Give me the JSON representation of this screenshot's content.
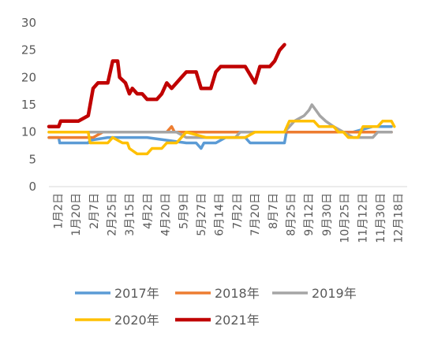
{
  "chart_data": {
    "type": "line",
    "title": "",
    "xlabel": "",
    "ylabel": "",
    "ylim": [
      0,
      30
    ],
    "yticks": [
      0,
      5,
      10,
      15,
      20,
      25,
      30
    ],
    "grid": false,
    "legend_position": "bottom",
    "x_tick_labels": [
      "1月2日",
      "1月20日",
      "2月7日",
      "2月25日",
      "3月15日",
      "4月2日",
      "4月20日",
      "5月9日",
      "5月27日",
      "6月14日",
      "7月2日",
      "7月20日",
      "8月7日",
      "8月25日",
      "9月12日",
      "9月30日",
      "10月25日",
      "11月12日",
      "11月30日",
      "12月18日"
    ],
    "series": [
      {
        "name": "2017年",
        "color": "#5B9BD5",
        "points": [
          [
            0,
            9
          ],
          [
            10,
            9
          ],
          [
            11,
            8
          ],
          [
            40,
            8
          ],
          [
            42,
            8.5
          ],
          [
            60,
            9
          ],
          [
            100,
            9
          ],
          [
            140,
            8
          ],
          [
            150,
            8
          ],
          [
            155,
            7
          ],
          [
            158,
            8
          ],
          [
            170,
            8
          ],
          [
            180,
            9
          ],
          [
            200,
            9
          ],
          [
            205,
            8
          ],
          [
            240,
            8
          ],
          [
            242,
            10
          ],
          [
            270,
            10
          ],
          [
            280,
            10
          ],
          [
            300,
            10
          ],
          [
            310,
            10
          ],
          [
            330,
            11
          ],
          [
            349,
            11
          ]
        ]
      },
      {
        "name": "2018年",
        "color": "#ED7D31",
        "points": [
          [
            0,
            9
          ],
          [
            30,
            9
          ],
          [
            35,
            9
          ],
          [
            45,
            9
          ],
          [
            55,
            10
          ],
          [
            120,
            10
          ],
          [
            125,
            11
          ],
          [
            128,
            10
          ],
          [
            200,
            10
          ],
          [
            280,
            10
          ],
          [
            300,
            10
          ],
          [
            320,
            10
          ],
          [
            349,
            10
          ]
        ]
      },
      {
        "name": "2019年",
        "color": "#A5A5A5",
        "points": [
          [
            0,
            10
          ],
          [
            130,
            10
          ],
          [
            140,
            9
          ],
          [
            190,
            9
          ],
          [
            195,
            10
          ],
          [
            240,
            10
          ],
          [
            250,
            12
          ],
          [
            260,
            13
          ],
          [
            265,
            14
          ],
          [
            268,
            15
          ],
          [
            272,
            14
          ],
          [
            276,
            13
          ],
          [
            282,
            12
          ],
          [
            290,
            11
          ],
          [
            300,
            10
          ],
          [
            310,
            9
          ],
          [
            330,
            9
          ],
          [
            335,
            10
          ],
          [
            349,
            10
          ]
        ]
      },
      {
        "name": "2020年",
        "color": "#FFC000",
        "points": [
          [
            0,
            10
          ],
          [
            40,
            10
          ],
          [
            42,
            8
          ],
          [
            60,
            8
          ],
          [
            65,
            9
          ],
          [
            75,
            8
          ],
          [
            80,
            8
          ],
          [
            82,
            7
          ],
          [
            90,
            6
          ],
          [
            100,
            6
          ],
          [
            105,
            7
          ],
          [
            115,
            7
          ],
          [
            120,
            8
          ],
          [
            130,
            8
          ],
          [
            135,
            9
          ],
          [
            140,
            10
          ],
          [
            160,
            9
          ],
          [
            200,
            9
          ],
          [
            210,
            10
          ],
          [
            240,
            10
          ],
          [
            245,
            12
          ],
          [
            255,
            12
          ],
          [
            270,
            12
          ],
          [
            275,
            11
          ],
          [
            290,
            11
          ],
          [
            295,
            10
          ],
          [
            300,
            10
          ],
          [
            305,
            9
          ],
          [
            315,
            9
          ],
          [
            320,
            11
          ],
          [
            335,
            11
          ],
          [
            340,
            12
          ],
          [
            349,
            12
          ],
          [
            352,
            11
          ]
        ]
      },
      {
        "name": "2021年",
        "color": "#C00000",
        "points": [
          [
            0,
            11
          ],
          [
            10,
            11
          ],
          [
            12,
            12
          ],
          [
            30,
            12
          ],
          [
            40,
            13
          ],
          [
            45,
            18
          ],
          [
            50,
            19
          ],
          [
            60,
            19
          ],
          [
            65,
            23
          ],
          [
            70,
            23
          ],
          [
            72,
            20
          ],
          [
            78,
            19
          ],
          [
            82,
            17
          ],
          [
            85,
            18
          ],
          [
            90,
            17
          ],
          [
            95,
            17
          ],
          [
            100,
            16
          ],
          [
            110,
            16
          ],
          [
            115,
            17
          ],
          [
            120,
            19
          ],
          [
            125,
            18
          ],
          [
            130,
            19
          ],
          [
            135,
            20
          ],
          [
            140,
            21
          ],
          [
            150,
            21
          ],
          [
            155,
            18
          ],
          [
            165,
            18
          ],
          [
            170,
            21
          ],
          [
            175,
            22
          ],
          [
            200,
            22
          ],
          [
            210,
            19
          ],
          [
            215,
            22
          ],
          [
            225,
            22
          ],
          [
            230,
            23
          ],
          [
            235,
            25
          ],
          [
            240,
            26
          ]
        ]
      }
    ]
  }
}
